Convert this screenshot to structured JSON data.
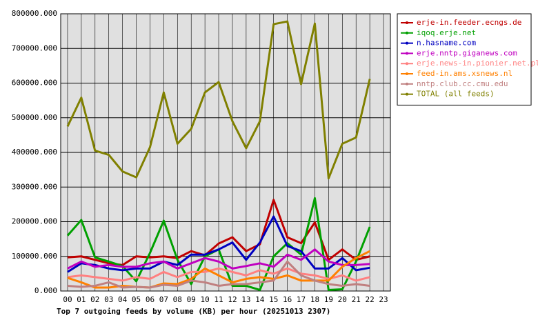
{
  "chart_data": {
    "type": "line",
    "title": "Top 7 outgoing feeds by volume (KB) per hour (20251013 2307)",
    "categories": [
      "00",
      "01",
      "02",
      "03",
      "04",
      "05",
      "06",
      "07",
      "08",
      "09",
      "10",
      "11",
      "12",
      "13",
      "14",
      "15",
      "16",
      "17",
      "18",
      "19",
      "20",
      "21",
      "22",
      "23"
    ],
    "series": [
      {
        "name": "erje-in.feeder.ecngs.de",
        "color": "#c00000",
        "values": [
          97000,
          100000,
          90000,
          80000,
          75000,
          100000,
          97000,
          100000,
          95000,
          115000,
          103000,
          137000,
          155000,
          115000,
          135000,
          263000,
          155000,
          138000,
          198000,
          90000,
          120000,
          90000,
          100000,
          null
        ]
      },
      {
        "name": "iqoq.erje.net",
        "color": "#00a000",
        "values": [
          160000,
          205000,
          97000,
          85000,
          72000,
          28000,
          110000,
          203000,
          90000,
          20000,
          100000,
          120000,
          15000,
          15000,
          3000,
          100000,
          138000,
          105000,
          268000,
          3000,
          5000,
          85000,
          185000,
          null
        ]
      },
      {
        "name": "n.hasname.com",
        "color": "#0000c0",
        "values": [
          55000,
          80000,
          75000,
          65000,
          60000,
          65000,
          65000,
          85000,
          75000,
          105000,
          105000,
          120000,
          140000,
          90000,
          140000,
          215000,
          130000,
          115000,
          65000,
          65000,
          95000,
          60000,
          67000,
          null
        ]
      },
      {
        "name": "erje.nntp.giganews.com",
        "color": "#c000c0",
        "values": [
          65000,
          85000,
          70000,
          75000,
          70000,
          70000,
          80000,
          85000,
          65000,
          80000,
          95000,
          85000,
          65000,
          72000,
          80000,
          70000,
          105000,
          90000,
          120000,
          85000,
          75000,
          75000,
          78000,
          null
        ]
      },
      {
        "name": "erje.news-in.pionier.net.pl",
        "color": "#ff8080",
        "values": [
          40000,
          45000,
          40000,
          35000,
          30000,
          40000,
          35000,
          55000,
          40000,
          55000,
          55000,
          65000,
          55000,
          45000,
          60000,
          50000,
          65000,
          50000,
          45000,
          35000,
          45000,
          30000,
          40000,
          null
        ]
      },
      {
        "name": "feed-in.ams.xsnews.nl",
        "color": "#ff8000",
        "values": [
          38000,
          25000,
          10000,
          10000,
          15000,
          12000,
          10000,
          22000,
          20000,
          35000,
          65000,
          45000,
          25000,
          35000,
          40000,
          35000,
          45000,
          30000,
          30000,
          30000,
          70000,
          95000,
          115000,
          null
        ]
      },
      {
        "name": "nntp.club.cc.cmu.edu",
        "color": "#c08080",
        "values": [
          15000,
          12000,
          15000,
          25000,
          10000,
          12000,
          10000,
          18000,
          15000,
          30000,
          25000,
          15000,
          20000,
          20000,
          25000,
          30000,
          85000,
          45000,
          30000,
          20000,
          15000,
          20000,
          15000,
          null
        ]
      },
      {
        "name": "TOTAL (all feeds)",
        "color": "#808000",
        "values": [
          475000,
          558000,
          405000,
          393000,
          345000,
          328000,
          415000,
          573000,
          425000,
          468000,
          573000,
          603000,
          490000,
          412000,
          490000,
          770000,
          778000,
          597000,
          772000,
          325000,
          425000,
          443000,
          612000,
          null
        ]
      }
    ],
    "ylim": [
      0,
      800000
    ],
    "yticks": [
      {
        "value": 0,
        "label": "0.000"
      },
      {
        "value": 100000,
        "label": "100000.000"
      },
      {
        "value": 200000,
        "label": "200000.000"
      },
      {
        "value": 300000,
        "label": "300000.000"
      },
      {
        "value": 400000,
        "label": "400000.000"
      },
      {
        "value": 500000,
        "label": "500000.000"
      },
      {
        "value": 600000,
        "label": "600000.000"
      },
      {
        "value": 700000,
        "label": "700000.000"
      },
      {
        "value": 800000,
        "label": "800000.000"
      }
    ],
    "grid": true,
    "legend": "right"
  }
}
